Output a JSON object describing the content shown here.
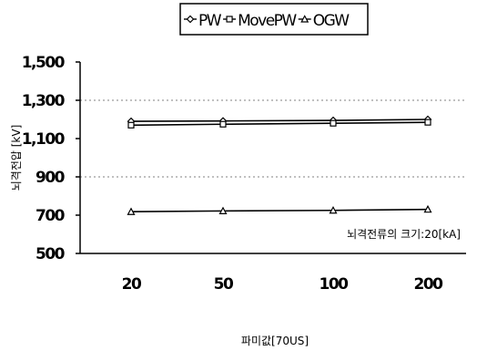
{
  "chart_data": {
    "type": "line",
    "categories": [
      "20",
      "50",
      "100",
      "200"
    ],
    "series": [
      {
        "name": "PW",
        "marker": "diamond",
        "values": [
          1190,
          1192,
          1195,
          1200
        ]
      },
      {
        "name": "MovePW",
        "marker": "square",
        "values": [
          1170,
          1175,
          1180,
          1185
        ]
      },
      {
        "name": "OGW",
        "marker": "triangle",
        "values": [
          718,
          722,
          725,
          730
        ]
      }
    ],
    "xlabel": "파미값[70US]",
    "ylabel": "뇌격전압 [kV]",
    "ylim": [
      500,
      1500
    ],
    "yticks": [
      500,
      700,
      900,
      1100,
      1300,
      1500
    ],
    "ytick_labels": [
      "500",
      "700",
      "900",
      "1,100",
      "1,300",
      "1,500"
    ],
    "grid_values": [
      900,
      1300
    ],
    "annotation": "뇌격전류의 크기:20[kA]",
    "legend_position": "top",
    "line_color": "#000000",
    "grid_color": "#808080"
  }
}
